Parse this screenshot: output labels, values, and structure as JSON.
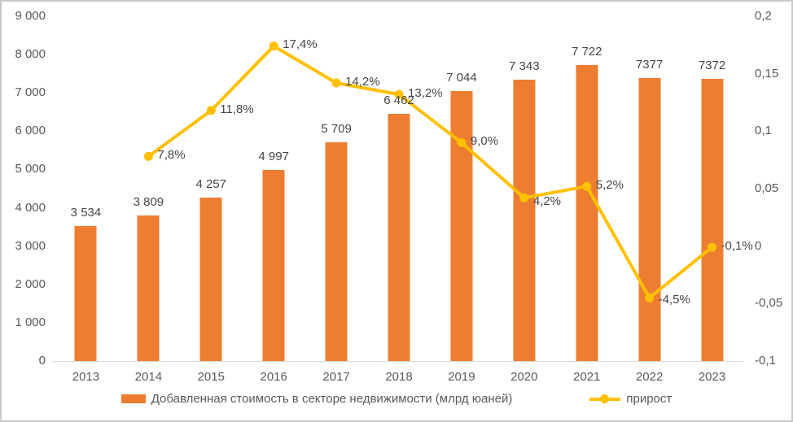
{
  "chart_data": {
    "type": "bar",
    "combo": "bar+line",
    "title": "",
    "categories": [
      "2013",
      "2014",
      "2015",
      "2016",
      "2017",
      "2018",
      "2019",
      "2020",
      "2021",
      "2022",
      "2023"
    ],
    "series": [
      {
        "name": "Добавленная стоимость в секторе недвижимости (млрд юаней)",
        "type": "bar",
        "axis": "left",
        "values": [
          3534,
          3809,
          4257,
          4997,
          5709,
          6462,
          7044,
          7343,
          7722,
          7377,
          7372
        ],
        "labels": [
          "3 534",
          "3 809",
          "4 257",
          "4 997",
          "5 709",
          "6 462",
          "7 044",
          "7 343",
          "7 722",
          "7377",
          "7372"
        ]
      },
      {
        "name": "прирост",
        "type": "line",
        "axis": "right",
        "start_category_index": 1,
        "values": [
          0.078,
          0.118,
          0.174,
          0.142,
          0.132,
          0.09,
          0.042,
          0.052,
          -0.045,
          -0.001
        ],
        "labels": [
          "7,8%",
          "11,8%",
          "17,4%",
          "14,2%",
          "13,2%",
          "9,0%",
          "4,2%",
          "5,2%",
          "-4,5%",
          "-0,1%"
        ]
      }
    ],
    "left_axis": {
      "min": 0,
      "max": 9000,
      "ticks": [
        {
          "label": "9 000",
          "value": 9000
        },
        {
          "label": "8 000",
          "value": 8000
        },
        {
          "label": "7 000",
          "value": 7000
        },
        {
          "label": "6 000",
          "value": 6000
        },
        {
          "label": "5 000",
          "value": 5000
        },
        {
          "label": "4 000",
          "value": 4000
        },
        {
          "label": "3 000",
          "value": 3000
        },
        {
          "label": "2 000",
          "value": 2000
        },
        {
          "label": "1 000",
          "value": 1000
        },
        {
          "label": "0",
          "value": 0
        }
      ]
    },
    "right_axis": {
      "min": -0.1,
      "max": 0.2,
      "ticks": [
        {
          "label": "0,2",
          "value": 0.2
        },
        {
          "label": "0,15",
          "value": 0.15
        },
        {
          "label": "0,1",
          "value": 0.1
        },
        {
          "label": "0,05",
          "value": 0.05
        },
        {
          "label": "0",
          "value": 0
        },
        {
          "label": "-0,05",
          "value": -0.05
        },
        {
          "label": "-0,1",
          "value": -0.1
        }
      ]
    },
    "grid": false,
    "legend_position": "bottom"
  },
  "legend": {
    "bar_label": "Добавленная стоимость в секторе недвижимости (млрд юаней)",
    "line_label": "прирост"
  },
  "colors": {
    "bar": "#ED7D31",
    "line": "#FFC000",
    "axis_text": "#595959",
    "label_text": "#454545",
    "axis_line": "#D9D9D9",
    "border": "#C9C9C9",
    "background": "#FFFFFF"
  }
}
